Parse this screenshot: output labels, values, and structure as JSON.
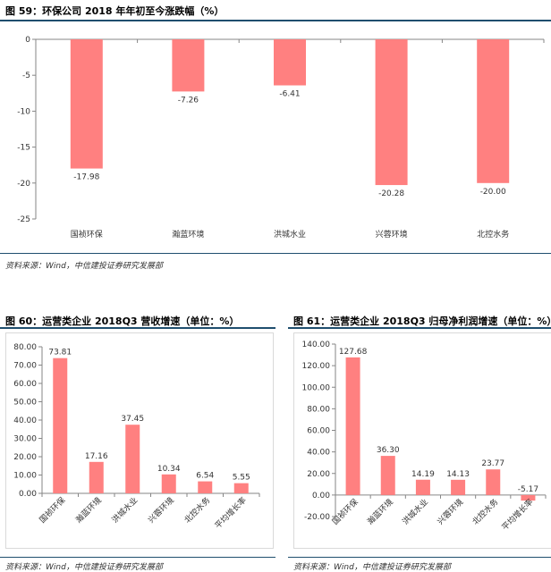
{
  "source": "资料来源：Wind，中信建投证券研究发展部",
  "bar_color": "#ff8080",
  "chart_data": [
    {
      "type": "bar",
      "title": "图 59：环保公司 2018 年年初至今涨跌幅（%）",
      "categories": [
        "国祯环保",
        "瀚蓝环境",
        "洪城水业",
        "兴蓉环境",
        "北控水务"
      ],
      "values": [
        -17.98,
        -7.26,
        -6.41,
        -20.28,
        -20.0
      ],
      "data_labels": [
        "-17.98",
        "-7.26",
        "-6.41",
        "-20.28",
        "-20.00"
      ],
      "yticks": [
        "0",
        "-5",
        "-10",
        "-15",
        "-20",
        "-25"
      ],
      "ylim": [
        -25,
        0
      ],
      "grid": false
    },
    {
      "type": "bar",
      "title": "图 60：运营类企业 2018Q3 营收增速（单位：%）",
      "categories": [
        "国祯环保",
        "瀚蓝环境",
        "洪城水业",
        "兴蓉环境",
        "北控水务",
        "平均增长率"
      ],
      "values": [
        73.81,
        17.16,
        37.45,
        10.34,
        6.54,
        5.55
      ],
      "data_labels": [
        "73.81",
        "17.16",
        "37.45",
        "10.34",
        "6.54",
        "5.55"
      ],
      "yticks": [
        "0.00",
        "10.00",
        "20.00",
        "30.00",
        "40.00",
        "50.00",
        "60.00",
        "70.00",
        "80.00"
      ],
      "ylim": [
        0,
        80
      ],
      "grid": false
    },
    {
      "type": "bar",
      "title": "图 61：运营类企业 2018Q3 归母净利润增速（单位：%）",
      "categories": [
        "国祯环保",
        "瀚蓝环境",
        "洪城水业",
        "兴蓉环境",
        "北控水务",
        "平均增长率"
      ],
      "values": [
        127.68,
        36.3,
        14.19,
        14.13,
        23.77,
        -5.17
      ],
      "data_labels": [
        "127.68",
        "36.30",
        "14.19",
        "14.13",
        "23.77",
        "-5.17"
      ],
      "yticks": [
        "-20.00",
        "0.00",
        "20.00",
        "40.00",
        "60.00",
        "80.00",
        "100.00",
        "120.00",
        "140.00"
      ],
      "ylim": [
        -20,
        140
      ],
      "grid": false
    }
  ]
}
